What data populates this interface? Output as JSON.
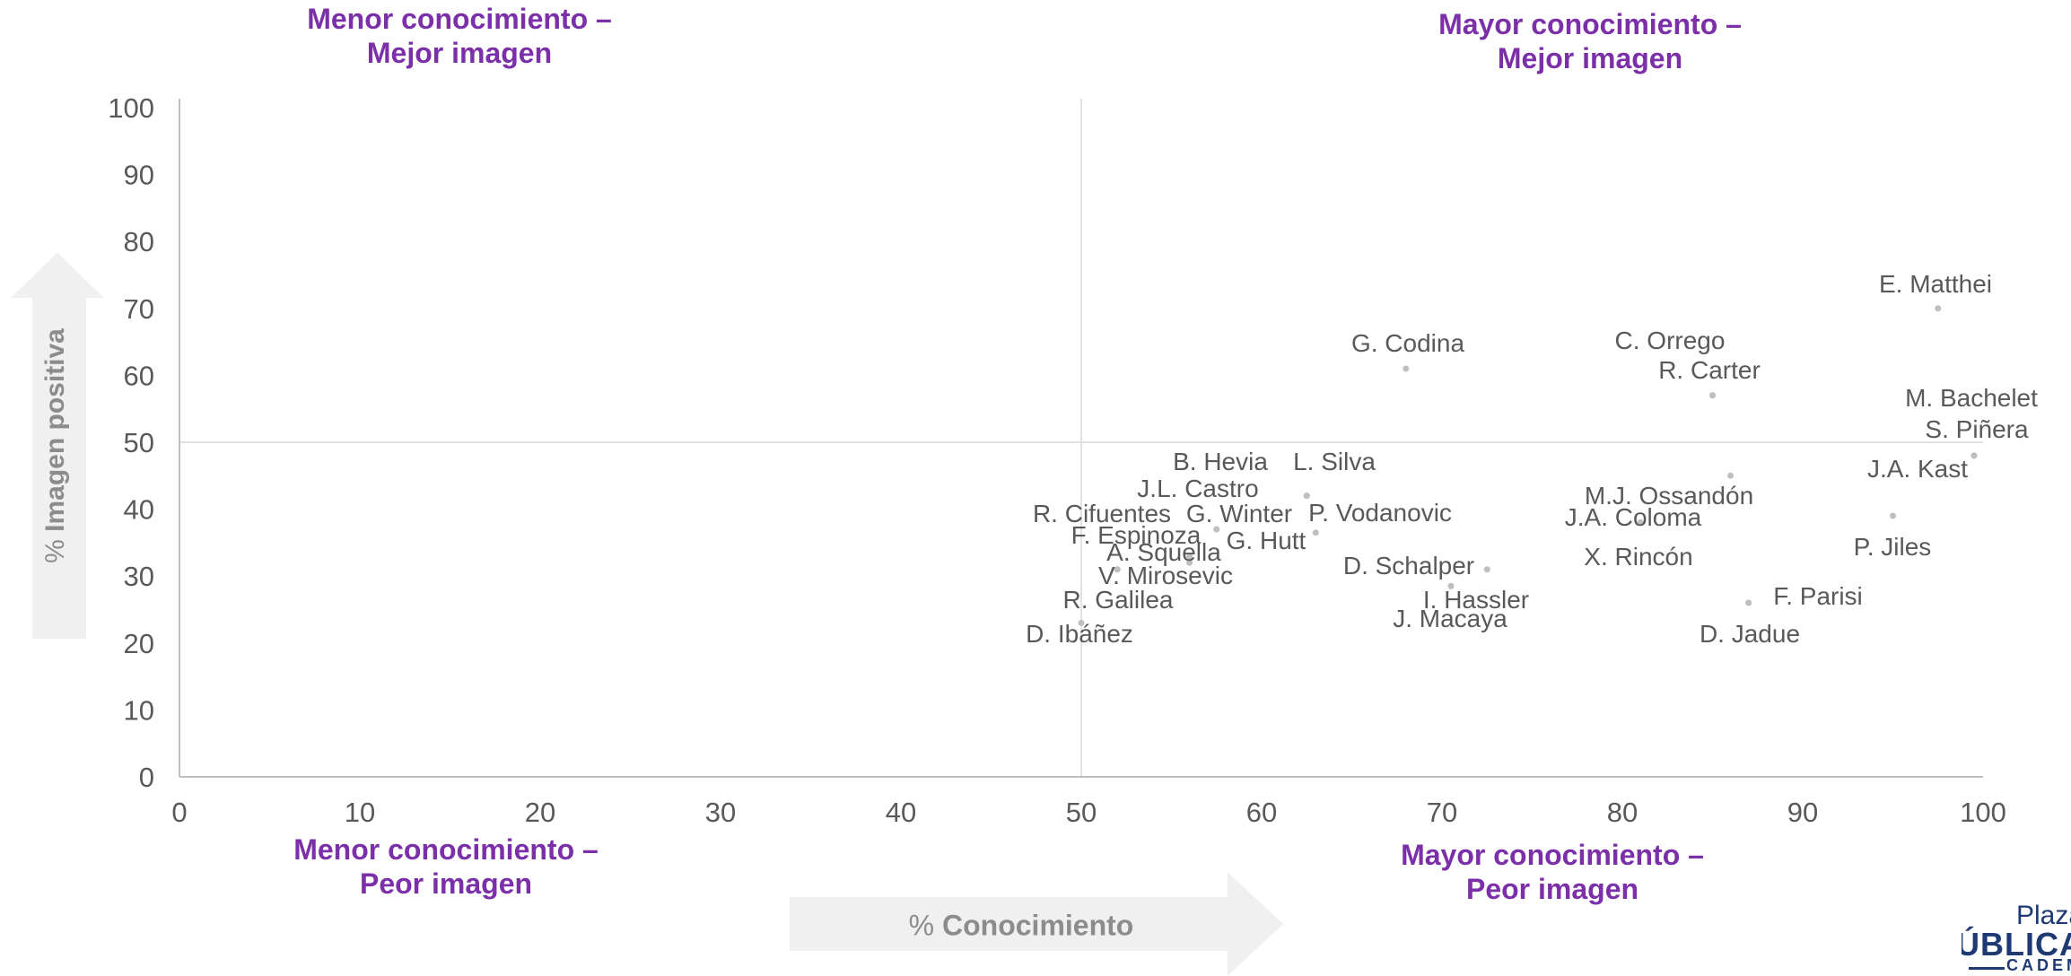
{
  "quadrants": {
    "top_left": [
      "Menor conocimiento –",
      "Mejor imagen"
    ],
    "top_right": [
      "Mayor conocimiento –",
      "Mejor imagen"
    ],
    "bottom_left": [
      "Menor conocimiento –",
      "Peor imagen"
    ],
    "bottom_right": [
      "Mayor conocimiento –",
      "Peor imagen"
    ]
  },
  "axis_labels": {
    "y_prefix": "% ",
    "y_main": "Imagen positiva",
    "x_prefix": "% ",
    "x_main": "Conocimiento"
  },
  "logo": {
    "line1": "Plaza",
    "line2": "PÚBLICA",
    "line3": "CADEM"
  },
  "colors": {
    "quadrant_text": "#7b2fa8",
    "point": "#bfbfbf",
    "label_text": "#595959",
    "axis_text": "#595959",
    "arrow_fill": "#f0f0f0",
    "logo": "#1f3a73"
  },
  "chart_data": {
    "type": "scatter",
    "xlim": [
      0,
      100
    ],
    "ylim": [
      0,
      100
    ],
    "xticks": [
      0,
      10,
      20,
      30,
      40,
      50,
      60,
      70,
      80,
      90,
      100
    ],
    "yticks": [
      0,
      10,
      20,
      30,
      40,
      50,
      60,
      70,
      80,
      90,
      100
    ],
    "xlabel": "% Conocimiento",
    "ylabel": "% Imagen positiva",
    "reference_lines": {
      "x": 50,
      "y": 50
    },
    "grid": false,
    "legend": "none",
    "points": [
      {
        "label": "E. Matthei",
        "x": 97.5,
        "y": 70
      },
      {
        "label": "G. Codina",
        "x": 68,
        "y": 61
      },
      {
        "label": "C. Orrego",
        "x": 85,
        "y": 57
      },
      {
        "label": "R. Carter",
        "x": 85,
        "y": 57
      },
      {
        "label": "M. Bachelet",
        "x": 99.5,
        "y": 48
      },
      {
        "label": "S. Piñera",
        "x": 99.5,
        "y": 48
      },
      {
        "label": "J.A. Kast",
        "x": 99.5,
        "y": 48
      },
      {
        "label": "B. Hevia",
        "x": 62.5,
        "y": 42
      },
      {
        "label": "L. Silva",
        "x": 62.5,
        "y": 42
      },
      {
        "label": "J.L. Castro",
        "x": 62.5,
        "y": 42
      },
      {
        "label": "M.J. Ossandón",
        "x": 86,
        "y": 45
      },
      {
        "label": "J.A. Coloma",
        "x": 81,
        "y": 38
      },
      {
        "label": "R. Cifuentes",
        "x": 57.5,
        "y": 37
      },
      {
        "label": "G. Winter",
        "x": 57.5,
        "y": 37
      },
      {
        "label": "P. Vodanovic",
        "x": 63,
        "y": 36.5
      },
      {
        "label": "F. Espinoza",
        "x": 56,
        "y": 33
      },
      {
        "label": "G. Hutt",
        "x": 56,
        "y": 33
      },
      {
        "label": "A. Squella",
        "x": 56,
        "y": 32
      },
      {
        "label": "P. Jiles",
        "x": 95,
        "y": 39
      },
      {
        "label": "X. Rincón",
        "x": 81,
        "y": 38
      },
      {
        "label": "D. Schalper",
        "x": 72.5,
        "y": 31
      },
      {
        "label": "V. Mirosevic",
        "x": 52,
        "y": 31
      },
      {
        "label": "I. Hassler",
        "x": 70.5,
        "y": 28.5
      },
      {
        "label": "R. Galilea",
        "x": 52,
        "y": 31
      },
      {
        "label": "F. Parisi",
        "x": 87,
        "y": 26
      },
      {
        "label": "J. Macaya",
        "x": 70.5,
        "y": 28.5
      },
      {
        "label": "D. Jadue",
        "x": 87,
        "y": 26
      },
      {
        "label": "D. Ibáñez",
        "x": 50,
        "y": 23
      }
    ]
  }
}
